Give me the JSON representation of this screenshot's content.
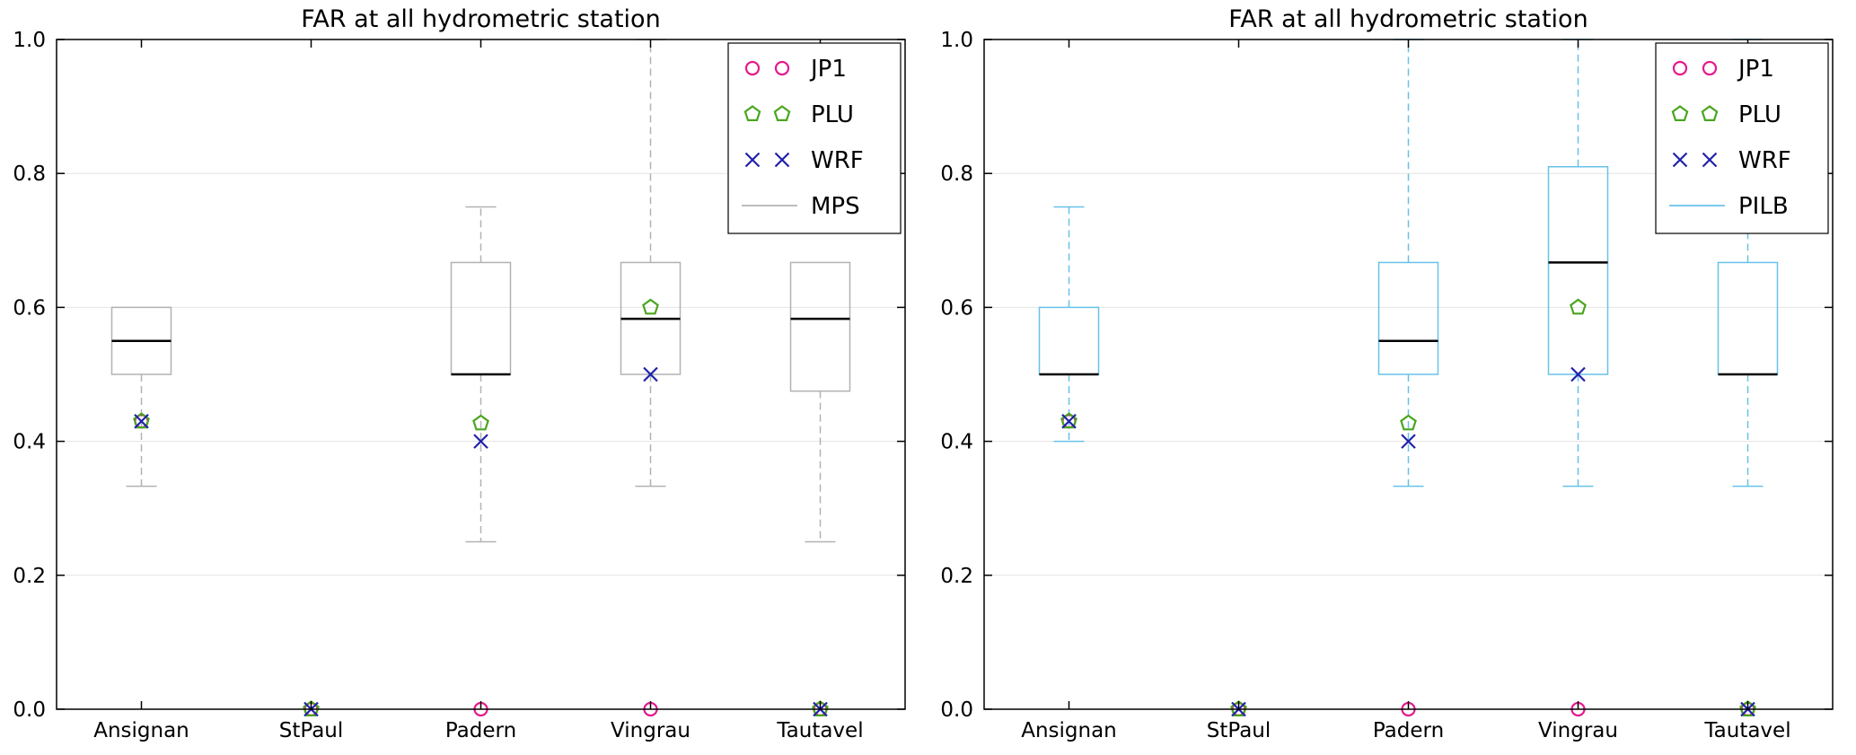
{
  "colors": {
    "jp1": "#e41a8c",
    "plu": "#4aa51e",
    "wrf": "#2121aa",
    "mps": "#b2b2b2",
    "pilb": "#68c2e8",
    "median": "#000000",
    "grid": "#e4e4e4",
    "axis": "#000000"
  },
  "chart_data": [
    {
      "type": "boxplot",
      "title": "FAR at all hydrometric station",
      "categories": [
        "Ansignan",
        "StPaul",
        "Padern",
        "Vingrau",
        "Tautavel"
      ],
      "ylim": [
        0.0,
        1.0
      ],
      "yticks": [
        "0.0",
        "0.2",
        "0.4",
        "0.6",
        "0.8",
        "1.0"
      ],
      "grid": true,
      "legend_position": "upper right",
      "box_series": "MPS",
      "box_color_key": "mps",
      "boxes": [
        {
          "category": "Ansignan",
          "q1": 0.5,
          "median": 0.55,
          "q3": 0.6,
          "whisker_low": 0.333,
          "whisker_high": 0.6
        },
        {
          "category": "StPaul",
          "q1": null,
          "median": null,
          "q3": null,
          "whisker_low": null,
          "whisker_high": null
        },
        {
          "category": "Padern",
          "q1": 0.5,
          "median": 0.5,
          "q3": 0.667,
          "whisker_low": 0.25,
          "whisker_high": 0.75
        },
        {
          "category": "Vingrau",
          "q1": 0.5,
          "median": 0.583,
          "q3": 0.667,
          "whisker_low": 0.333,
          "whisker_high": 1.0
        },
        {
          "category": "Tautavel",
          "q1": 0.475,
          "median": 0.583,
          "q3": 0.667,
          "whisker_low": 0.25,
          "whisker_high": 0.667
        }
      ],
      "scatter_series": [
        {
          "name": "JP1",
          "marker": "circle",
          "color_key": "jp1",
          "values": [
            0.43,
            0.0,
            0.0,
            0.0,
            0.0
          ]
        },
        {
          "name": "PLU",
          "marker": "pentagon",
          "color_key": "plu",
          "values": [
            0.43,
            0.0,
            0.427,
            0.6,
            0.0
          ]
        },
        {
          "name": "WRF",
          "marker": "x",
          "color_key": "wrf",
          "values": [
            0.43,
            0.0,
            0.4,
            0.5,
            0.0
          ]
        }
      ],
      "legend_entries": [
        {
          "label": "JP1",
          "marker": "circle",
          "color_key": "jp1"
        },
        {
          "label": "PLU",
          "marker": "pentagon",
          "color_key": "plu"
        },
        {
          "label": "WRF",
          "marker": "x",
          "color_key": "wrf"
        },
        {
          "label": "MPS",
          "marker": "line",
          "color_key": "mps"
        }
      ]
    },
    {
      "type": "boxplot",
      "title": "FAR at all hydrometric station",
      "categories": [
        "Ansignan",
        "StPaul",
        "Padern",
        "Vingrau",
        "Tautavel"
      ],
      "ylim": [
        0.0,
        1.0
      ],
      "yticks": [
        "0.0",
        "0.2",
        "0.4",
        "0.6",
        "0.8",
        "1.0"
      ],
      "grid": true,
      "legend_position": "upper right",
      "box_series": "PILB",
      "box_color_key": "pilb",
      "boxes": [
        {
          "category": "Ansignan",
          "q1": 0.5,
          "median": 0.5,
          "q3": 0.6,
          "whisker_low": 0.4,
          "whisker_high": 0.75
        },
        {
          "category": "StPaul",
          "q1": null,
          "median": null,
          "q3": null,
          "whisker_low": null,
          "whisker_high": null
        },
        {
          "category": "Padern",
          "q1": 0.5,
          "median": 0.55,
          "q3": 0.667,
          "whisker_low": 0.333,
          "whisker_high": 1.0
        },
        {
          "category": "Vingrau",
          "q1": 0.5,
          "median": 0.667,
          "q3": 0.81,
          "whisker_low": 0.333,
          "whisker_high": 1.0
        },
        {
          "category": "Tautavel",
          "q1": 0.5,
          "median": 0.5,
          "q3": 0.667,
          "whisker_low": 0.333,
          "whisker_high": 1.0
        }
      ],
      "scatter_series": [
        {
          "name": "JP1",
          "marker": "circle",
          "color_key": "jp1",
          "values": [
            0.43,
            0.0,
            0.0,
            0.0,
            0.0
          ]
        },
        {
          "name": "PLU",
          "marker": "pentagon",
          "color_key": "plu",
          "values": [
            0.43,
            0.0,
            0.427,
            0.6,
            0.0
          ]
        },
        {
          "name": "WRF",
          "marker": "x",
          "color_key": "wrf",
          "values": [
            0.43,
            0.0,
            0.4,
            0.5,
            0.0
          ]
        }
      ],
      "legend_entries": [
        {
          "label": "JP1",
          "marker": "circle",
          "color_key": "jp1"
        },
        {
          "label": "PLU",
          "marker": "pentagon",
          "color_key": "plu"
        },
        {
          "label": "WRF",
          "marker": "x",
          "color_key": "wrf"
        },
        {
          "label": "PILB",
          "marker": "line",
          "color_key": "pilb"
        }
      ]
    }
  ]
}
